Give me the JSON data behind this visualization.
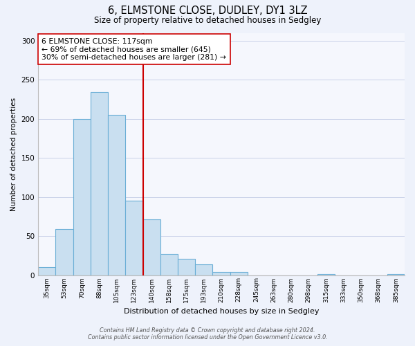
{
  "title": "6, ELMSTONE CLOSE, DUDLEY, DY1 3LZ",
  "subtitle": "Size of property relative to detached houses in Sedgley",
  "xlabel": "Distribution of detached houses by size in Sedgley",
  "ylabel": "Number of detached properties",
  "bar_labels": [
    "35sqm",
    "53sqm",
    "70sqm",
    "88sqm",
    "105sqm",
    "123sqm",
    "140sqm",
    "158sqm",
    "175sqm",
    "193sqm",
    "210sqm",
    "228sqm",
    "245sqm",
    "263sqm",
    "280sqm",
    "298sqm",
    "315sqm",
    "333sqm",
    "350sqm",
    "368sqm",
    "385sqm"
  ],
  "bar_values": [
    10,
    59,
    200,
    234,
    205,
    95,
    71,
    27,
    21,
    14,
    4,
    4,
    0,
    0,
    0,
    0,
    1,
    0,
    0,
    0,
    1
  ],
  "bar_color": "#c9dff0",
  "bar_edge_color": "#6aaed6",
  "vline_x_idx": 5,
  "vline_color": "#cc0000",
  "annotation_line1": "6 ELMSTONE CLOSE: 117sqm",
  "annotation_line2": "← 69% of detached houses are smaller (645)",
  "annotation_line3": "30% of semi-detached houses are larger (281) →",
  "ylim": [
    0,
    310
  ],
  "yticks": [
    0,
    50,
    100,
    150,
    200,
    250,
    300
  ],
  "footer_line1": "Contains HM Land Registry data © Crown copyright and database right 2024.",
  "footer_line2": "Contains public sector information licensed under the Open Government Licence v3.0.",
  "bg_color": "#eef2fb",
  "plot_bg_color": "#f5f7fd",
  "grid_color": "#c8d0e8"
}
